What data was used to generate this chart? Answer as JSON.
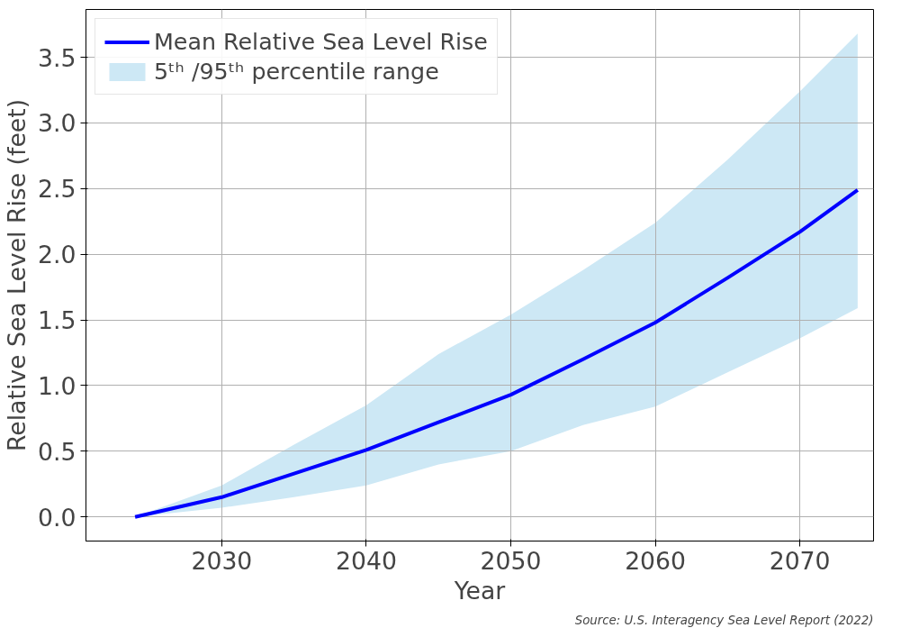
{
  "chart_data": {
    "type": "line",
    "xlabel": "Year",
    "ylabel": "Relative Sea Level Rise (feet)",
    "x": [
      2024,
      2030,
      2035,
      2040,
      2045,
      2050,
      2055,
      2060,
      2065,
      2070,
      2074
    ],
    "series": [
      {
        "name": "Mean Relative Sea Level Rise",
        "color": "#0000ff",
        "values": [
          0,
          0.15,
          0.33,
          0.51,
          0.72,
          0.93,
          1.2,
          1.48,
          1.82,
          2.17,
          2.49
        ]
      },
      {
        "name": "5ᵗʰ /95ᵗʰ percentile range",
        "type": "area",
        "color": "#cde8f5",
        "values": [
          null,
          null,
          null,
          null,
          null,
          null,
          null,
          null,
          null,
          null,
          null
        ],
        "upper": [
          0,
          0.24,
          0.55,
          0.85,
          1.24,
          1.54,
          1.88,
          2.24,
          2.72,
          3.24,
          3.68
        ],
        "lower": [
          0,
          0.07,
          0.15,
          0.24,
          0.4,
          0.5,
          0.7,
          0.84,
          1.1,
          1.36,
          1.59
        ]
      }
    ],
    "xlim": [
      2020.6,
      2075.1
    ],
    "xticks": [
      2030,
      2040,
      2050,
      2060,
      2070
    ],
    "ylim": [
      -0.184,
      3.864
    ],
    "yticks": [
      {
        "value": 0,
        "label": "0.0"
      },
      0.5,
      {
        "value": 1,
        "label": "1.0"
      },
      1.5,
      {
        "value": 2,
        "label": "2.0"
      },
      2.5,
      {
        "value": 3,
        "label": "3.0"
      },
      3.5
    ],
    "grid": true,
    "legend": "top left",
    "marker": "none",
    "line_style": "solid",
    "annotations": [
      "Source: U.S. Interagency Sea Level Report (2022)"
    ]
  }
}
